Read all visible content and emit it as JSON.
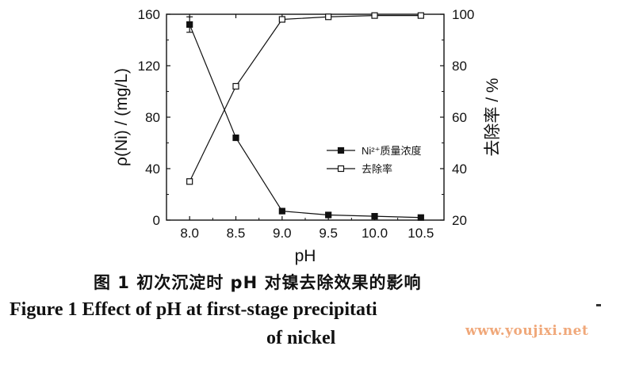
{
  "chart_data": {
    "type": "line",
    "x": [
      8.0,
      8.5,
      9.0,
      9.5,
      10.0,
      10.5
    ],
    "xlabel": "pH",
    "xlim": [
      7.75,
      10.75
    ],
    "ylabel_left": "ρ(Ni) / (mg/L)",
    "ylim_left": [
      0,
      160
    ],
    "yticks_left": [
      0,
      40,
      80,
      120,
      160
    ],
    "ylabel_right": "去除率 / %",
    "ylim_right": [
      20,
      100
    ],
    "yticks_right": [
      20,
      40,
      60,
      80,
      100
    ],
    "xticks": [
      "8.0",
      "8.5",
      "9.0",
      "9.5",
      "10.0",
      "10.5"
    ],
    "legend_position": "right",
    "series": [
      {
        "name": "Ni²⁺质量浓度",
        "axis": "left",
        "marker": "filled-square",
        "values": [
          152,
          64,
          7,
          4,
          3,
          2
        ],
        "error": [
          6,
          2,
          0,
          0,
          0,
          0
        ]
      },
      {
        "name": "去除率",
        "axis": "right",
        "marker": "open-square",
        "values": [
          35,
          72,
          98,
          99,
          99.5,
          99.5
        ]
      }
    ]
  },
  "captions": {
    "cn": "图 1   初次沉淀时 pH 对镍去除效果的影响",
    "en_line1": "Figure 1    Effect of pH at first-stage precipitati",
    "en_line2": "of nickel"
  },
  "watermark": "www.youjixi.net",
  "colors": {
    "line": "#111111",
    "watermark": "#f0a87a"
  }
}
